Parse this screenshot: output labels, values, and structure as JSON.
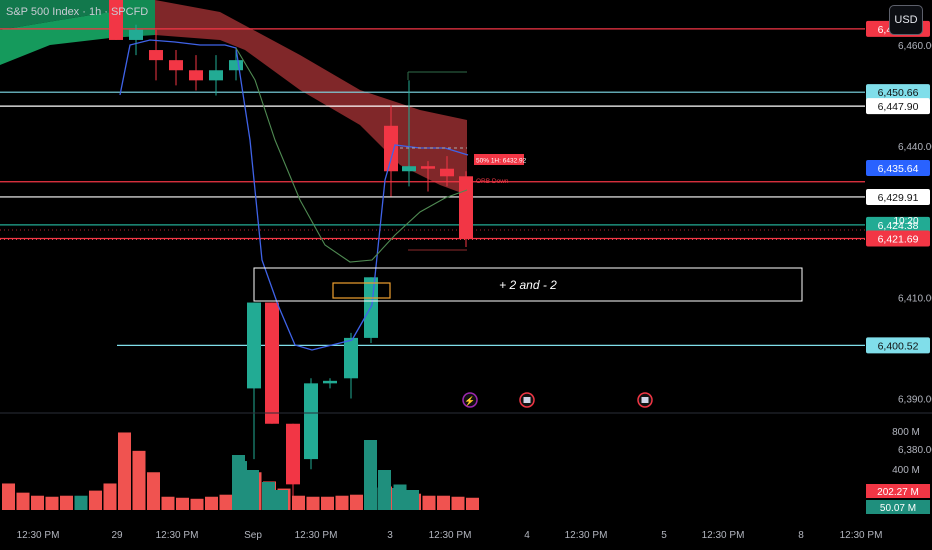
{
  "header": {
    "symbol_title": "S&P 500 Index · 1h · SPCFD",
    "currency_button": "USD"
  },
  "chart_data": {
    "type": "candlestick",
    "title": "S&P 500 Index · 1h · SPCFD",
    "price_axis": {
      "ticks": [
        6460.0,
        6440.0,
        6410.0,
        6390.0,
        6380.0
      ],
      "range": [
        6373,
        6470
      ]
    },
    "time_axis": [
      "12:30 PM",
      "29",
      "12:30 PM",
      "Sep",
      "12:30 PM",
      "3",
      "12:30 PM",
      "4",
      "12:30 PM",
      "5",
      "12:30 PM",
      "8",
      "12:30 PM"
    ],
    "candles": [
      {
        "o": 6470,
        "h": 6472,
        "l": 6461,
        "c": 6461
      },
      {
        "o": 6461,
        "h": 6464,
        "l": 6458,
        "c": 6463
      },
      {
        "o": 6459,
        "h": 6463,
        "l": 6453,
        "c": 6457
      },
      {
        "o": 6457,
        "h": 6459,
        "l": 6452,
        "c": 6455
      },
      {
        "o": 6455,
        "h": 6458,
        "l": 6451,
        "c": 6453
      },
      {
        "o": 6453,
        "h": 6458,
        "l": 6450,
        "c": 6455
      },
      {
        "o": 6455,
        "h": 6459,
        "l": 6453,
        "c": 6457
      },
      {
        "o": 6456,
        "h": 6461,
        "l": 6454,
        "c": 6459
      },
      {
        "o": 6458,
        "h": 6462,
        "l": 6455,
        "c": 6459
      },
      {
        "o": 6392,
        "h": 6409,
        "l": 6378,
        "c": 6409
      },
      {
        "o": 6409,
        "h": 6409,
        "l": 6385,
        "c": 6385
      },
      {
        "o": 6385,
        "h": 6385,
        "l": 6370,
        "c": 6373
      },
      {
        "o": 6378,
        "h": 6394,
        "l": 6376,
        "c": 6393
      },
      {
        "o": 6393,
        "h": 6394,
        "l": 6392,
        "c": 6393.5
      },
      {
        "o": 6394,
        "h": 6403,
        "l": 6390,
        "c": 6402
      },
      {
        "o": 6402,
        "h": 6414,
        "l": 6401,
        "c": 6414
      },
      {
        "o": 6444,
        "h": 6448,
        "l": 6430,
        "c": 6435
      },
      {
        "o": 6435,
        "h": 6453,
        "l": 6432,
        "c": 6436
      },
      {
        "o": 6436,
        "h": 6437,
        "l": 6431,
        "c": 6435.5
      },
      {
        "o": 6435.5,
        "h": 6438,
        "l": 6432,
        "c": 6434
      },
      {
        "o": 6434,
        "h": 6435,
        "l": 6420,
        "c": 6421.69
      }
    ],
    "horizontal_levels": [
      {
        "price": 6463.2,
        "label": "6,463.20",
        "color": "#f23645"
      },
      {
        "price": 6450.66,
        "label": "6,450.66",
        "color": "#80deea"
      },
      {
        "price": 6447.9,
        "label": "6,447.90",
        "color": "#ffffff"
      },
      {
        "price": 6435.64,
        "label": "6,435.64",
        "color": "#2962ff"
      },
      {
        "price": 6432.92,
        "label": "",
        "color": "#f23645"
      },
      {
        "price": 6429.91,
        "label": "6,429.91",
        "color": "#ffffff"
      },
      {
        "price": 6424.38,
        "label": "6,424.38",
        "color": "#22ab94"
      },
      {
        "price": 6421.69,
        "label": "6,421.69",
        "color": "#f23645"
      },
      {
        "price": 6400.52,
        "label": "6,400.52",
        "color": "#80deea"
      }
    ],
    "current_price": {
      "price": "6,421.69",
      "countdown": "10:20"
    },
    "annotations": {
      "box_text": "+ 2 and - 2",
      "prev_high_label": "50% 1H: 6432.92",
      "orb_label": "ORB Down"
    },
    "volume": {
      "axis_ticks": [
        "800 M",
        "400 M"
      ],
      "labels": [
        "202.27 M",
        "50.07 M"
      ],
      "bars": [
        {
          "up": false,
          "v": 260
        },
        {
          "up": false,
          "v": 170
        },
        {
          "up": false,
          "v": 140
        },
        {
          "up": false,
          "v": 130
        },
        {
          "up": false,
          "v": 140
        },
        {
          "up": true,
          "v": 140
        },
        {
          "up": false,
          "v": 190
        },
        {
          "up": false,
          "v": 260
        },
        {
          "up": false,
          "v": 760
        },
        {
          "up": false,
          "v": 580
        },
        {
          "up": false,
          "v": 370
        },
        {
          "up": false,
          "v": 130
        },
        {
          "up": false,
          "v": 120
        },
        {
          "up": false,
          "v": 110
        },
        {
          "up": false,
          "v": 130
        },
        {
          "up": false,
          "v": 150
        },
        {
          "up": true,
          "v": 480
        },
        {
          "up": false,
          "v": 370
        },
        {
          "up": false,
          "v": 280
        },
        {
          "up": false,
          "v": 210
        },
        {
          "up": false,
          "v": 140
        },
        {
          "up": false,
          "v": 130
        },
        {
          "up": false,
          "v": 130
        },
        {
          "up": false,
          "v": 140
        },
        {
          "up": false,
          "v": 150
        },
        {
          "up": true,
          "v": 220
        },
        {
          "up": false,
          "v": 230
        },
        {
          "up": true,
          "v": 250
        },
        {
          "up": false,
          "v": 160
        },
        {
          "up": false,
          "v": 140
        },
        {
          "up": false,
          "v": 140
        },
        {
          "up": false,
          "v": 130
        },
        {
          "up": false,
          "v": 120
        }
      ]
    }
  }
}
